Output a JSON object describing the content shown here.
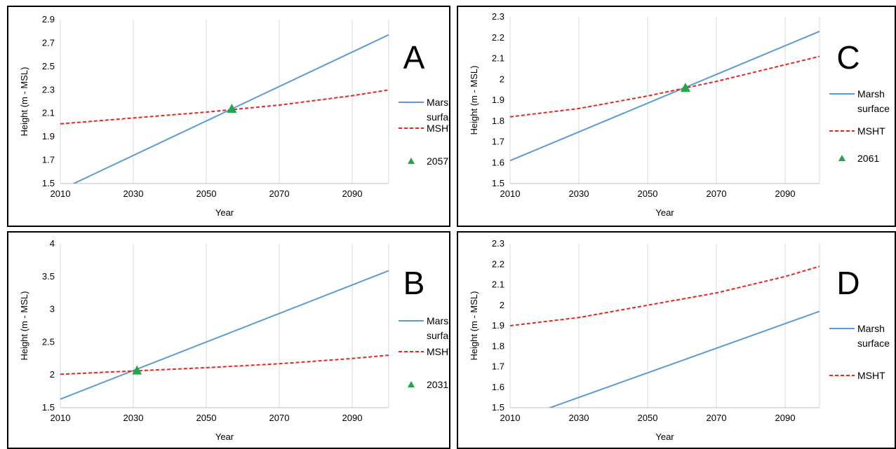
{
  "chart_data": [
    {
      "panel_label": "A",
      "type": "line",
      "xlabel": "Year",
      "ylabel": "Height (m - MSL)",
      "xlim": [
        2010,
        2100
      ],
      "ylim": [
        1.5,
        2.9
      ],
      "xticks": [
        "2010",
        "2030",
        "2050",
        "2070",
        "2090"
      ],
      "yticks": [
        "1.5",
        "1.7",
        "1.9",
        "2.1",
        "2.3",
        "2.5",
        "2.7",
        "2.9"
      ],
      "grid": "vertical",
      "legend_position": "right",
      "series": [
        {
          "name": "Marsh surface",
          "style": "solid",
          "color": "#5B9BD5",
          "x": [
            2013,
            2100
          ],
          "y": [
            1.49,
            2.77
          ]
        },
        {
          "name": "MSHT",
          "style": "dashed",
          "color": "#E8251E",
          "x": [
            2010,
            2030,
            2050,
            2070,
            2090,
            2100
          ],
          "y": [
            2.01,
            2.06,
            2.11,
            2.17,
            2.25,
            2.3
          ]
        }
      ],
      "marker": {
        "label": "2057",
        "x": 2057,
        "y": 2.14,
        "color": "#22A64A"
      }
    },
    {
      "panel_label": "C",
      "type": "line",
      "xlabel": "Year",
      "ylabel": "Height (m - MSL)",
      "xlim": [
        2010,
        2100
      ],
      "ylim": [
        1.5,
        2.3
      ],
      "xticks": [
        "2010",
        "2030",
        "2050",
        "2070",
        "2090"
      ],
      "yticks": [
        "1.5",
        "1.6",
        "1.7",
        "1.8",
        "1.9",
        "2",
        "2.1",
        "2.2",
        "2.3"
      ],
      "grid": "vertical",
      "legend_position": "right",
      "series": [
        {
          "name": "Marsh surface",
          "style": "solid",
          "color": "#5B9BD5",
          "x": [
            2010,
            2100
          ],
          "y": [
            1.61,
            2.23
          ]
        },
        {
          "name": "MSHT",
          "style": "dashed",
          "color": "#E8251E",
          "x": [
            2010,
            2030,
            2050,
            2070,
            2090,
            2100
          ],
          "y": [
            1.82,
            1.86,
            1.92,
            1.99,
            2.07,
            2.11
          ]
        }
      ],
      "marker": {
        "label": "2061",
        "x": 2061,
        "y": 1.96,
        "color": "#22A64A"
      }
    },
    {
      "panel_label": "B",
      "type": "line",
      "xlabel": "Year",
      "ylabel": "Height (m - MSL)",
      "xlim": [
        2010,
        2100
      ],
      "ylim": [
        1.5,
        4
      ],
      "xticks": [
        "2010",
        "2030",
        "2050",
        "2070",
        "2090"
      ],
      "yticks": [
        "1.5",
        "2",
        "2.5",
        "3",
        "3.5",
        "4"
      ],
      "grid": "vertical",
      "legend_position": "right",
      "series": [
        {
          "name": "Marsh surface",
          "style": "solid",
          "color": "#5B9BD5",
          "x": [
            2010,
            2100
          ],
          "y": [
            1.63,
            3.59
          ]
        },
        {
          "name": "MSHT",
          "style": "dashed",
          "color": "#E8251E",
          "x": [
            2010,
            2030,
            2050,
            2070,
            2090,
            2100
          ],
          "y": [
            2.01,
            2.06,
            2.11,
            2.17,
            2.25,
            2.3
          ]
        }
      ],
      "marker": {
        "label": "2031",
        "x": 2031,
        "y": 2.07,
        "color": "#22A64A"
      }
    },
    {
      "panel_label": "D",
      "type": "line",
      "xlabel": "Year",
      "ylabel": "Height (m - MSL)",
      "xlim": [
        2010,
        2100
      ],
      "ylim": [
        1.5,
        2.3
      ],
      "xticks": [
        "2010",
        "2030",
        "2050",
        "2070",
        "2090"
      ],
      "yticks": [
        "1.5",
        "1.6",
        "1.7",
        "1.8",
        "1.9",
        "2",
        "2.1",
        "2.2",
        "2.3"
      ],
      "grid": "vertical",
      "legend_position": "right",
      "series": [
        {
          "name": "Marsh surface",
          "style": "solid",
          "color": "#5B9BD5",
          "x": [
            2020,
            2100
          ],
          "y": [
            1.49,
            1.97
          ]
        },
        {
          "name": "MSHT",
          "style": "dashed",
          "color": "#E8251E",
          "x": [
            2010,
            2030,
            2050,
            2070,
            2090,
            2100
          ],
          "y": [
            1.9,
            1.94,
            2.0,
            2.06,
            2.14,
            2.19
          ]
        }
      ],
      "marker": null
    }
  ]
}
